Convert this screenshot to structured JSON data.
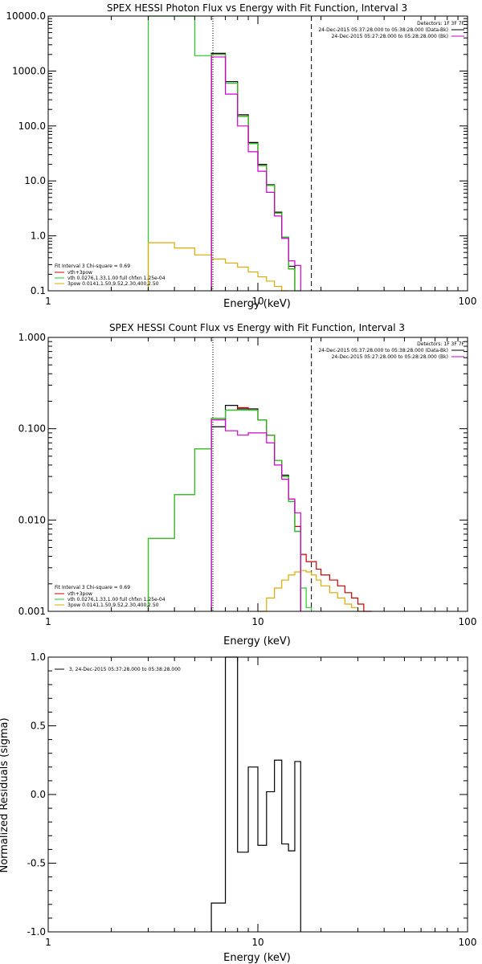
{
  "chart_data": [
    {
      "type": "line",
      "title": "SPEX HESSI Photon Flux vs Energy with Fit Function, Interval 3",
      "xlabel": "Energy (keV)",
      "ylabel": "",
      "xscale": "log",
      "yscale": "log",
      "xlim": [
        1,
        100
      ],
      "ylim": [
        0.1,
        10000
      ],
      "xticks": [
        "1",
        "10",
        "100"
      ],
      "yticks": [
        "0.1",
        "1.0",
        "10.0",
        "100.0",
        "1000.0",
        "10000.0"
      ],
      "header": [
        "Detectors: 1F 3F 7F",
        "24-Dec-2015 05:37:28.000 to 05:38:28.000 (Data-Bk)",
        "24-Dec-2015 05:27:28.000 to 05:28:28.000 (Bk)"
      ],
      "legend": [
        "Fit Interval 3   Chi-square = 0.69",
        "vth+3pow",
        "vth 0.0276,1.33,1.00  full chfxn 1.25e-04",
        "3pow 0.0141,1.50,9.52,2.30,400,2.50"
      ],
      "bin_edges": [
        3.0,
        4.0,
        5.0,
        6.0,
        7.0,
        8.0,
        9.0,
        10.0,
        11.0,
        12.0,
        13.0,
        14.0,
        15.0,
        16.0,
        17.0,
        18.0
      ],
      "series": [
        {
          "name": "Data-Bk",
          "color": "#000000",
          "values": [
            null,
            null,
            null,
            2100,
            640,
            160,
            50,
            20,
            8.5,
            2.7,
            0.95,
            0.28,
            null,
            null,
            null
          ]
        },
        {
          "name": "vth+3pow",
          "color": "#cc0000",
          "values": [
            null,
            null,
            null,
            2000,
            600,
            150,
            48,
            19,
            8.3,
            2.6,
            0.95,
            0.25,
            null,
            null,
            null
          ]
        },
        {
          "name": "vth",
          "color": "#22cc22",
          "values": [
            10000,
            10000,
            1900,
            2000,
            600,
            150,
            48,
            19,
            8.3,
            2.6,
            0.95,
            0.25,
            0.1,
            null,
            null
          ]
        },
        {
          "name": "3pow",
          "color": "#ddaa00",
          "values": [
            0.75,
            0.6,
            0.45,
            0.38,
            0.32,
            0.27,
            0.22,
            0.18,
            0.15,
            0.12,
            0.1,
            null,
            null,
            null,
            null
          ]
        },
        {
          "name": "Bk",
          "color": "#cc00cc",
          "values": [
            null,
            null,
            null,
            1800,
            380,
            100,
            34,
            15,
            6.2,
            2.3,
            0.9,
            0.35,
            0.29,
            null,
            null
          ]
        }
      ],
      "vlines": [
        {
          "x": 6.1,
          "style": "dotted"
        },
        {
          "x": 18.0,
          "style": "dashed"
        }
      ]
    },
    {
      "type": "line",
      "title": "SPEX HESSI Count Flux vs Energy with Fit Function, Interval 3",
      "xlabel": "Energy (keV)",
      "ylabel": "",
      "xscale": "log",
      "yscale": "log",
      "xlim": [
        1,
        100
      ],
      "ylim": [
        0.001,
        1
      ],
      "xticks": [
        "1",
        "10",
        "100"
      ],
      "yticks": [
        "0.001",
        "0.010",
        "0.100",
        "1.000"
      ],
      "header": [
        "Detectors: 1F 3F 7F",
        "24-Dec-2015 05:37:28.000 to 05:38:28.000 (Data-Bk)",
        "24-Dec-2015 05:27:28.000 to 05:28:28.000 (Bk)"
      ],
      "legend": [
        "Fit Interval 3   Chi-square = 0.69",
        "vth+3pow",
        "vth 0.0276,1.33,1.00  full chfxn 1.25e-04",
        "3pow 0.0141,1.50,9.52,2.30,400,2.50"
      ],
      "bin_edges": [
        3.0,
        4.0,
        5.0,
        6.0,
        7.0,
        8.0,
        9.0,
        10.0,
        11.0,
        12.0,
        13.0,
        14.0,
        15.0,
        16.0,
        17.0,
        18.0,
        19.0,
        20.0,
        22.0,
        24.0,
        26.0,
        28.0,
        30.0,
        32.0,
        35.0,
        38.0
      ],
      "series": [
        {
          "name": "Data-Bk",
          "color": "#000000",
          "values": [
            null,
            null,
            null,
            0.105,
            0.18,
            0.165,
            0.165,
            0.125,
            0.085,
            0.045,
            0.031,
            0.016,
            0.0075,
            null,
            null,
            null,
            null,
            null,
            null,
            null,
            null,
            null,
            null,
            null,
            null
          ]
        },
        {
          "name": "vth+3pow",
          "color": "#cc0000",
          "values": [
            0.0063,
            0.019,
            0.06,
            0.13,
            0.16,
            0.17,
            0.16,
            0.125,
            0.085,
            0.045,
            0.03,
            0.017,
            0.0085,
            0.0042,
            0.0035,
            0.0035,
            0.0029,
            0.0025,
            0.0022,
            0.0019,
            0.0016,
            0.0014,
            0.0012,
            0.001,
            null
          ]
        },
        {
          "name": "vth",
          "color": "#22cc22",
          "values": [
            0.0063,
            0.019,
            0.06,
            0.13,
            0.16,
            0.16,
            0.16,
            0.125,
            0.085,
            0.045,
            0.03,
            0.016,
            0.0075,
            0.0018,
            0.0011,
            null,
            null,
            null,
            null,
            null,
            null,
            null,
            null,
            null,
            null
          ]
        },
        {
          "name": "3pow",
          "color": "#ddaa00",
          "values": [
            null,
            null,
            null,
            null,
            null,
            null,
            null,
            0.001,
            0.0014,
            0.0018,
            0.0022,
            0.0025,
            0.0027,
            0.0028,
            0.0027,
            0.0025,
            0.0022,
            0.0019,
            0.0016,
            0.0014,
            0.0012,
            0.0011,
            0.001,
            null,
            null
          ]
        },
        {
          "name": "Bk",
          "color": "#cc00cc",
          "values": [
            null,
            null,
            null,
            0.125,
            0.095,
            0.085,
            0.09,
            0.09,
            0.07,
            0.04,
            0.028,
            0.017,
            0.012,
            null,
            null,
            null,
            null,
            null,
            null,
            null,
            null,
            null,
            null,
            null,
            null
          ]
        }
      ],
      "vlines": [
        {
          "x": 6.1,
          "style": "dotted"
        },
        {
          "x": 18.0,
          "style": "dashed"
        }
      ]
    },
    {
      "type": "line",
      "title": "",
      "xlabel": "Energy (keV)",
      "ylabel": "Normalized Residuals (sigma)",
      "xscale": "log",
      "yscale": "linear",
      "xlim": [
        1,
        100
      ],
      "ylim": [
        -1.0,
        1.0
      ],
      "xticks": [
        "1",
        "10",
        "100"
      ],
      "yticks": [
        "-1.0",
        "-0.5",
        "0.0",
        "0.5",
        "1.0"
      ],
      "legend": [
        "3, 24-Dec-2015 05:37:28.000 to 05:38:28.000"
      ],
      "bin_edges": [
        6.0,
        7.0,
        8.0,
        9.0,
        10.0,
        11.0,
        12.0,
        13.0,
        14.0,
        15.0,
        16.0,
        17.0,
        18.0
      ],
      "series": [
        {
          "name": "",
          "color": "#000000",
          "values": [
            -0.79,
            1.0,
            -0.42,
            0.2,
            -0.37,
            0.02,
            0.25,
            -0.36,
            -0.41,
            0.24,
            null,
            null
          ]
        }
      ]
    }
  ]
}
